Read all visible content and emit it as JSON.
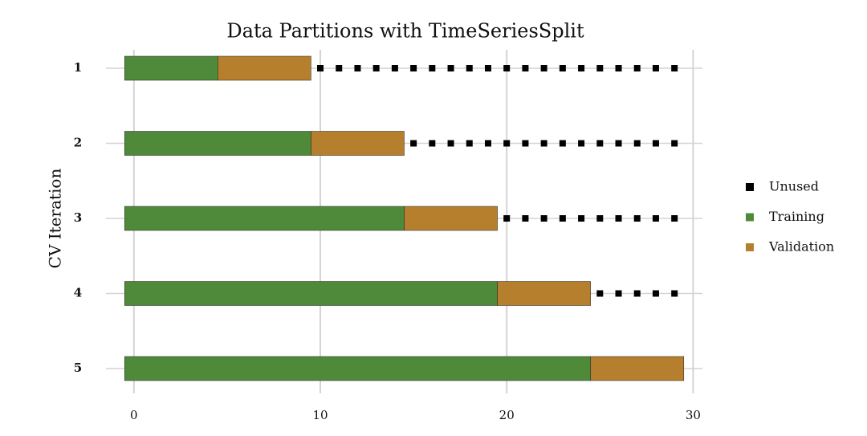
{
  "chart_data": {
    "type": "bar",
    "orientation": "horizontal",
    "stacked": true,
    "title": "Data Partitions with TimeSeriesSplit",
    "y_label": "CV Iteration",
    "categories": [
      "1",
      "2",
      "3",
      "4",
      "5"
    ],
    "series": [
      {
        "name": "Unused",
        "color": "#000000",
        "style": "dots",
        "values": [
          20,
          15,
          10,
          5,
          0
        ]
      },
      {
        "name": "Training",
        "color": "#4f8a3a",
        "values": [
          5,
          10,
          15,
          20,
          25
        ]
      },
      {
        "name": "Validation",
        "color": "#b57f2e",
        "values": [
          5,
          5,
          5,
          5,
          5
        ]
      }
    ],
    "stack_order": [
      "Training",
      "Validation",
      "Unused"
    ],
    "xlim": [
      -1.5,
      30.5
    ],
    "xticks": [
      0,
      10,
      20,
      30
    ],
    "grid": true,
    "legend": "right"
  }
}
